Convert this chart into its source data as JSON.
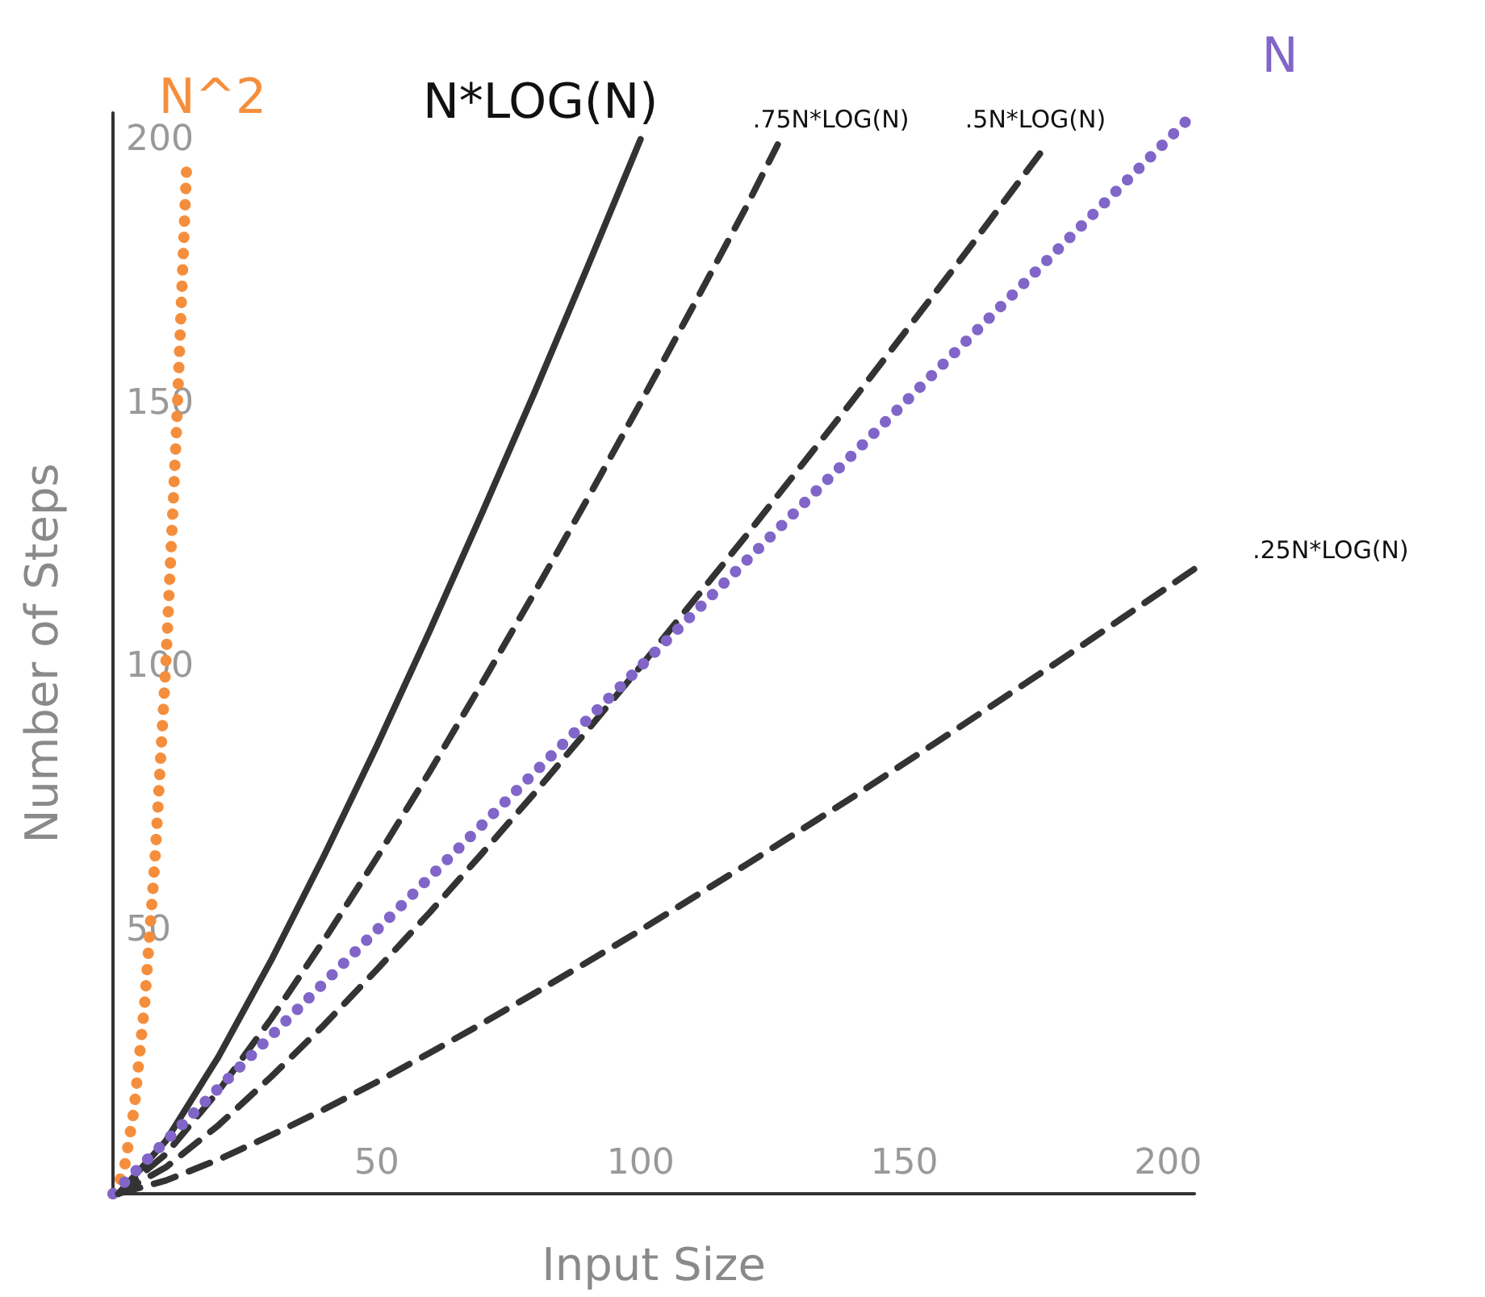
{
  "chart_data": {
    "type": "line",
    "xlabel": "Input Size",
    "ylabel": "Number of Steps",
    "xlim": [
      0,
      205
    ],
    "ylim": [
      0,
      205
    ],
    "xticks": [
      50,
      100,
      150,
      200
    ],
    "yticks": [
      50,
      100,
      150,
      200
    ],
    "grid": false,
    "marker": "none",
    "legend": false,
    "series": [
      {
        "name": "N^2",
        "color": "#f58e3c",
        "line_style": "dotted",
        "x": [
          0,
          2,
          4,
          6,
          8,
          10,
          12,
          14
        ],
        "values": [
          0,
          4,
          16,
          36,
          64,
          100,
          144,
          196
        ]
      },
      {
        "name": "N*LOG(N)",
        "color": "#333333",
        "line_style": "solid",
        "x": [
          1,
          10,
          20,
          30,
          40,
          50,
          60,
          70,
          80,
          90,
          100
        ],
        "values": [
          0,
          10,
          26,
          44.3,
          64.1,
          84.9,
          106.7,
          129.2,
          152.2,
          175.9,
          200
        ]
      },
      {
        "name": ".75N*LOG(N)",
        "color": "#333333",
        "line_style": "dashed",
        "x": [
          1,
          10,
          20,
          30,
          40,
          50,
          60,
          70,
          80,
          90,
          100,
          110,
          120,
          126
        ],
        "values": [
          0,
          7.5,
          19.5,
          33.2,
          48.1,
          63.7,
          80,
          96.9,
          114.2,
          131.9,
          150,
          168.4,
          187.1,
          199
        ]
      },
      {
        "name": ".5N*LOG(N)",
        "color": "#333333",
        "line_style": "dashed",
        "x": [
          1,
          10,
          20,
          30,
          40,
          50,
          60,
          70,
          80,
          90,
          100,
          120,
          140,
          160,
          177
        ],
        "values": [
          0,
          5,
          13,
          22.2,
          32,
          42.5,
          53.3,
          64.6,
          76.1,
          88,
          100,
          124.8,
          150.2,
          176.3,
          199
        ]
      },
      {
        "name": "N",
        "color": "#8165c8",
        "line_style": "dotted",
        "x": [
          0,
          205
        ],
        "values": [
          0,
          205
        ]
      },
      {
        "name": ".25N*LOG(N)",
        "color": "#333333",
        "line_style": "dashed",
        "x": [
          1,
          10,
          20,
          30,
          40,
          50,
          60,
          70,
          80,
          90,
          100,
          120,
          140,
          160,
          180,
          205
        ],
        "values": [
          0,
          2.5,
          6.5,
          11.1,
          16,
          21.2,
          26.7,
          32.3,
          38.1,
          44,
          50,
          62.4,
          75.1,
          88.2,
          101.5,
          118.5
        ]
      }
    ]
  }
}
